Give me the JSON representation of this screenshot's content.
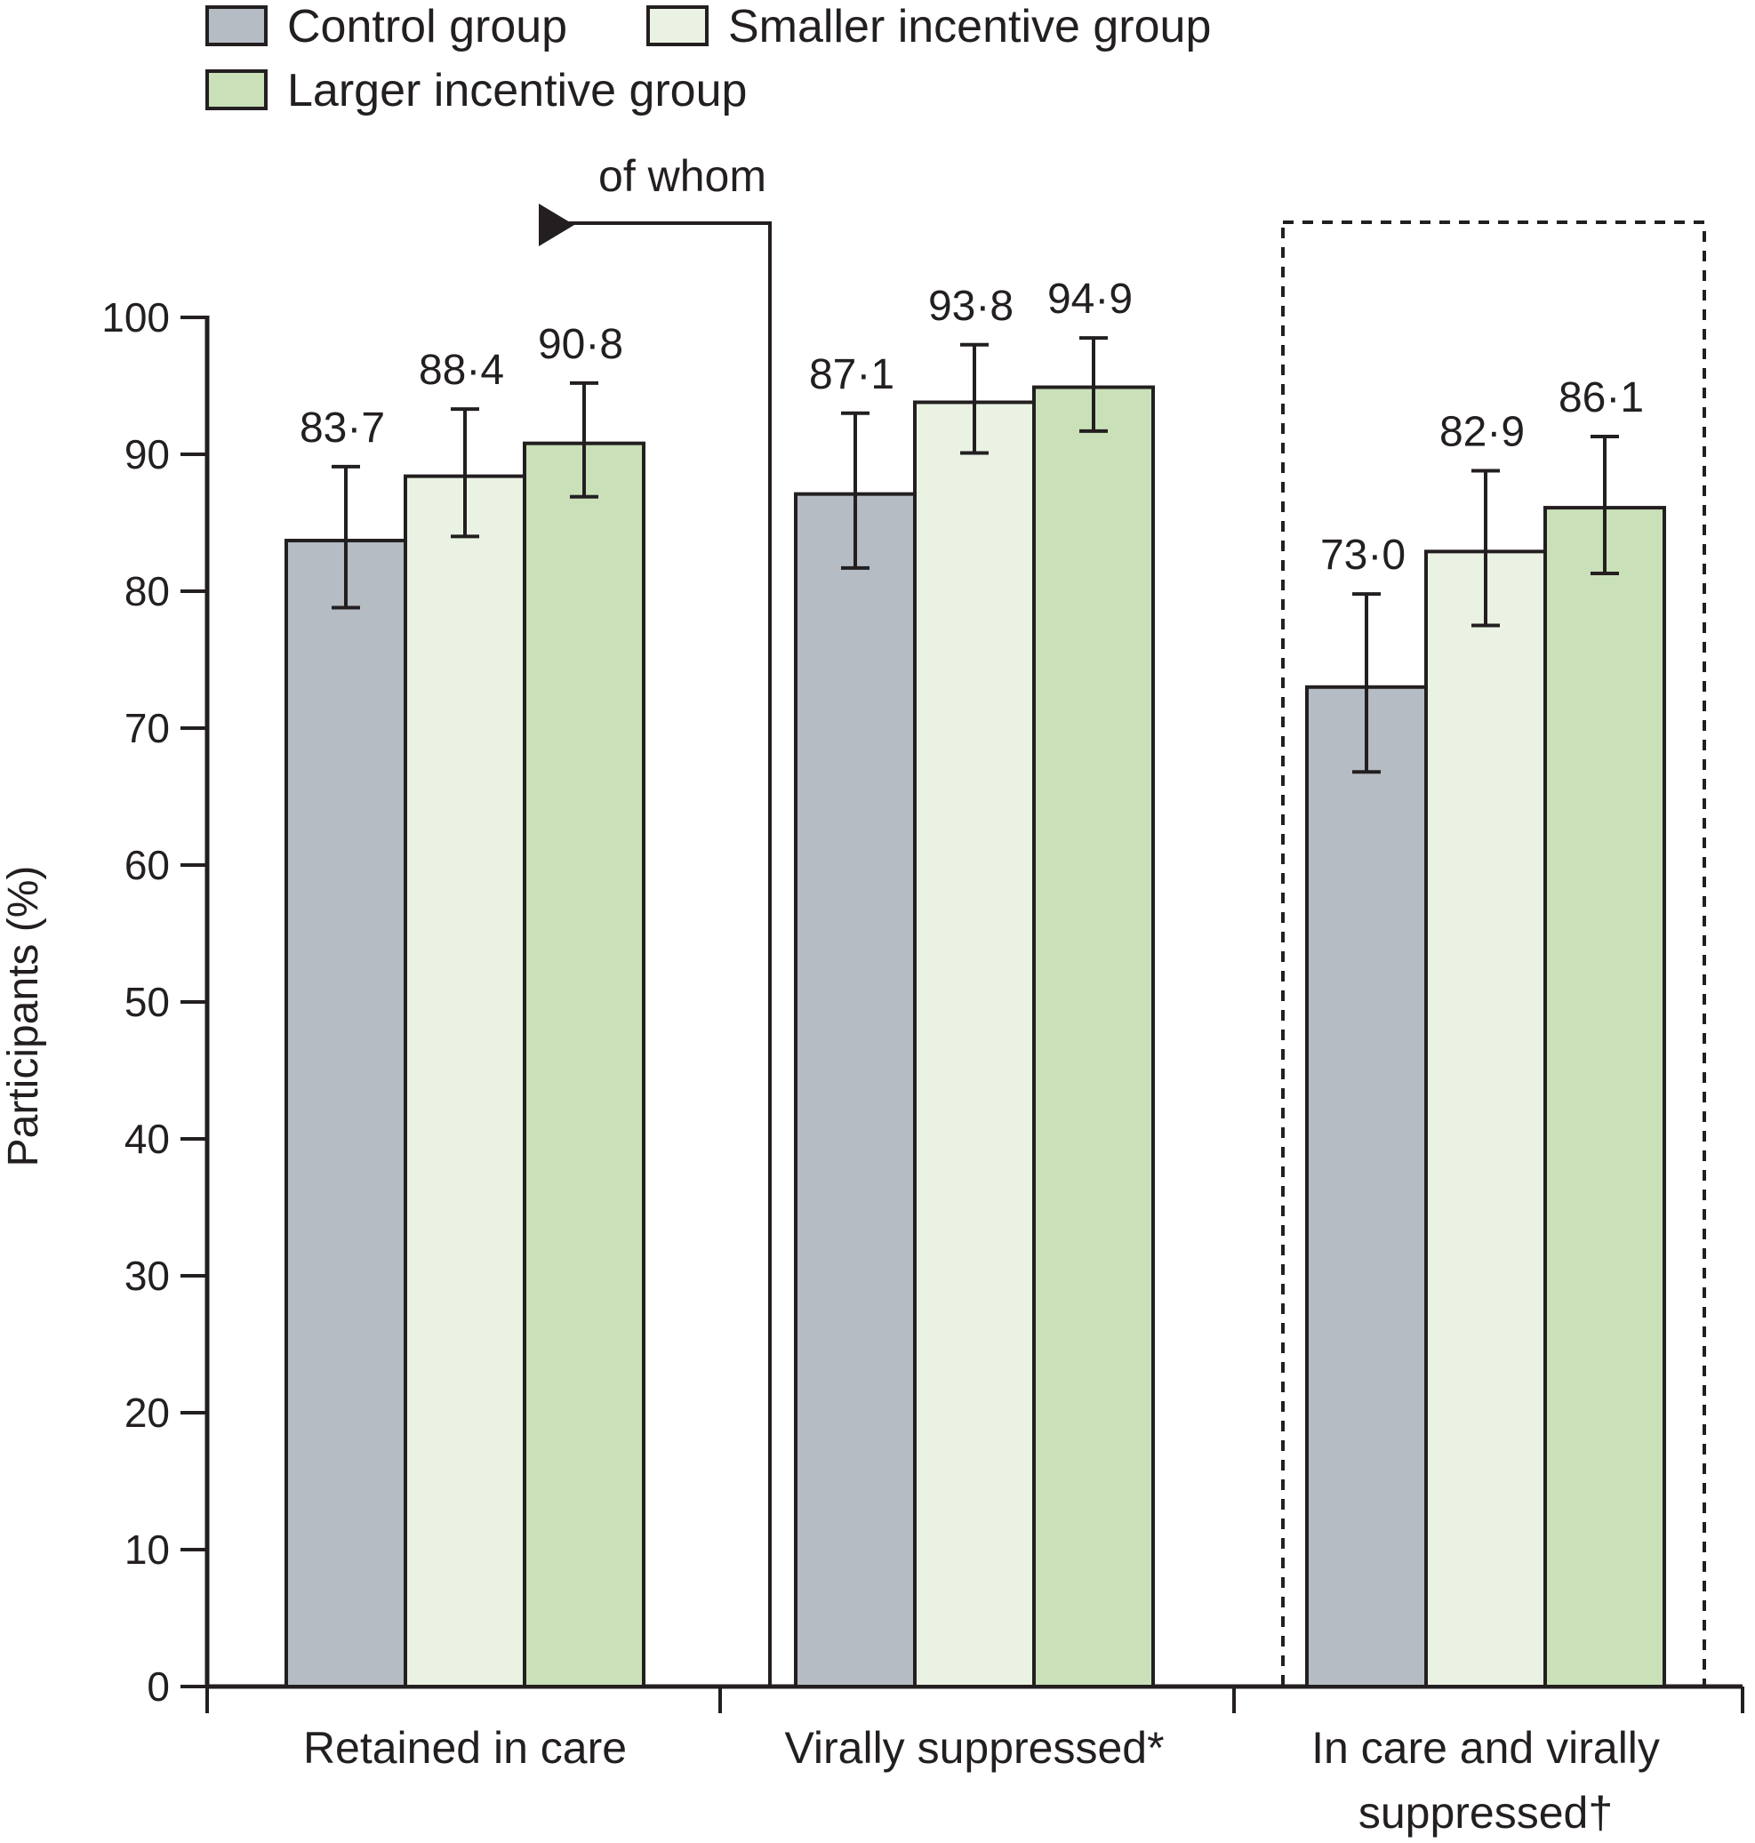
{
  "chart_data": {
    "type": "bar",
    "ylabel": "Participants (%)",
    "ylim": [
      0,
      100
    ],
    "yticks": [
      0,
      10,
      20,
      30,
      40,
      50,
      60,
      70,
      80,
      90,
      100
    ],
    "categories": [
      [
        "Retained in care"
      ],
      [
        "Virally suppressed*"
      ],
      [
        "In care and virally",
        "suppressed†"
      ]
    ],
    "series": [
      {
        "name": "Control group",
        "color": "#b5bcc3",
        "values": [
          83.7,
          87.1,
          73.0
        ],
        "labels": [
          "83·7",
          "87·1",
          "73·0"
        ],
        "ci_low": [
          78.8,
          81.7,
          66.8
        ],
        "ci_high": [
          89.1,
          93.0,
          79.8
        ]
      },
      {
        "name": "Smaller incentive group",
        "color": "#eaf3e3",
        "values": [
          88.4,
          93.8,
          82.9
        ],
        "labels": [
          "88·4",
          "93·8",
          "82·9"
        ],
        "ci_low": [
          84.0,
          90.1,
          77.5
        ],
        "ci_high": [
          93.3,
          98.0,
          88.8
        ]
      },
      {
        "name": "Larger incentive group",
        "color": "#c9e0b8",
        "values": [
          90.8,
          94.9,
          86.1
        ],
        "labels": [
          "90·8",
          "94·9",
          "86·1"
        ],
        "ci_low": [
          86.9,
          91.7,
          81.3
        ],
        "ci_high": [
          95.2,
          98.5,
          91.3
        ]
      }
    ],
    "annotation": "of whom",
    "legend_position": "top-left",
    "grid": false
  }
}
